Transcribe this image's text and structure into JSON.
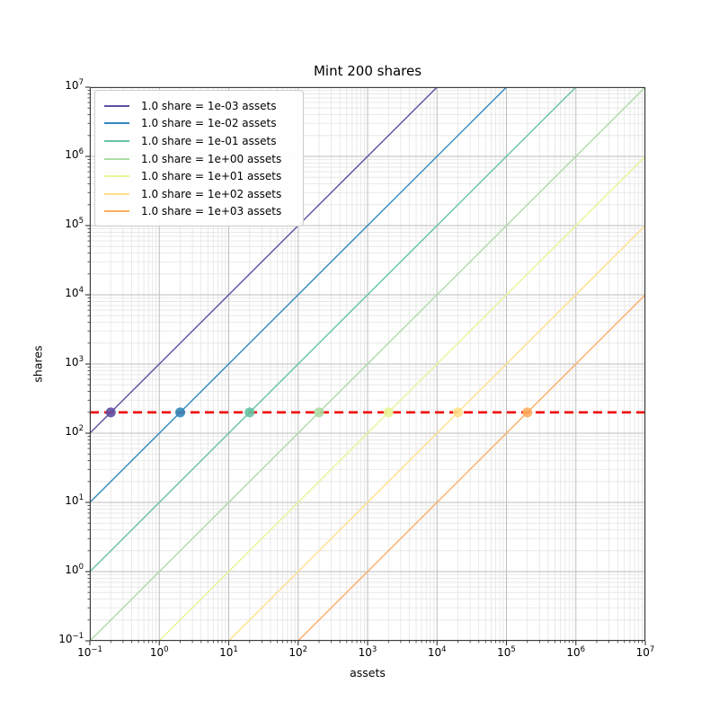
{
  "chart_data": {
    "type": "line",
    "title": "Mint 200 shares",
    "xlabel": "assets",
    "ylabel": "shares",
    "xscale": "log",
    "yscale": "log",
    "xlim": [
      0.1,
      10000000
    ],
    "ylim": [
      0.1,
      10000000
    ],
    "grid": "major and minor, both axes",
    "legend_position": "upper left",
    "x_ticks": [
      {
        "e": -1,
        "sup": "−1"
      },
      {
        "e": 0,
        "sup": "0"
      },
      {
        "e": 1,
        "sup": "1"
      },
      {
        "e": 2,
        "sup": "2"
      },
      {
        "e": 3,
        "sup": "3"
      },
      {
        "e": 4,
        "sup": "4"
      },
      {
        "e": 5,
        "sup": "5"
      },
      {
        "e": 6,
        "sup": "6"
      },
      {
        "e": 7,
        "sup": "7"
      }
    ],
    "y_ticks": [
      {
        "e": -1,
        "sup": "−1"
      },
      {
        "e": 0,
        "sup": "0"
      },
      {
        "e": 1,
        "sup": "1"
      },
      {
        "e": 2,
        "sup": "2"
      },
      {
        "e": 3,
        "sup": "3"
      },
      {
        "e": 4,
        "sup": "4"
      },
      {
        "e": 5,
        "sup": "5"
      },
      {
        "e": 6,
        "sup": "6"
      },
      {
        "e": 7,
        "sup": "7"
      }
    ],
    "tick_base": "10",
    "series": [
      {
        "label": "1.0 share = 1e-03 assets",
        "assets_per_share": 0.001,
        "color": "#5e4fa2",
        "marker": {
          "assets": 0.2,
          "shares": 200
        }
      },
      {
        "label": "1.0 share = 1e-02 assets",
        "assets_per_share": 0.01,
        "color": "#3288bd",
        "marker": {
          "assets": 2,
          "shares": 200
        }
      },
      {
        "label": "1.0 share = 1e-01 assets",
        "assets_per_share": 0.1,
        "color": "#66c2a5",
        "marker": {
          "assets": 20,
          "shares": 200
        }
      },
      {
        "label": "1.0 share = 1e+00 assets",
        "assets_per_share": 1,
        "color": "#abdda4",
        "marker": {
          "assets": 200,
          "shares": 200
        }
      },
      {
        "label": "1.0 share = 1e+01 assets",
        "assets_per_share": 10,
        "color": "#e6f598",
        "marker": {
          "assets": 2000,
          "shares": 200
        }
      },
      {
        "label": "1.0 share = 1e+02 assets",
        "assets_per_share": 100,
        "color": "#fee08b",
        "marker": {
          "assets": 20000,
          "shares": 200
        }
      },
      {
        "label": "1.0 share = 1e+03 assets",
        "assets_per_share": 1000,
        "color": "#fdae61",
        "marker": {
          "assets": 200000,
          "shares": 200
        }
      }
    ],
    "target_line": {
      "shares": 200,
      "color": "#ee0000",
      "style": "dashed",
      "width": 2.6
    },
    "colors": {
      "grid_major": "#bdbdbd",
      "grid_minor": "#e4e4e4",
      "spine": "#3c3c3c",
      "tick": "#333333"
    }
  }
}
